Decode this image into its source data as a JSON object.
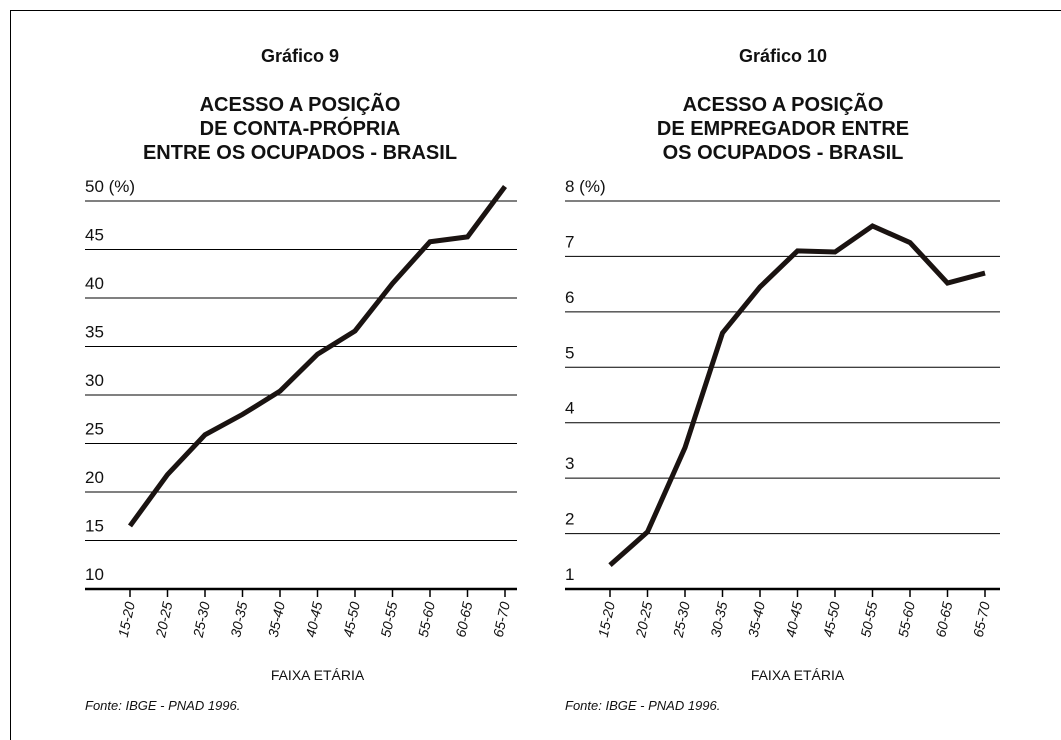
{
  "chart_data": [
    {
      "type": "line",
      "subtitle": "Gráfico 9",
      "title": [
        "ACESSO A POSIÇÃO",
        "DE CONTA-PRÓPRIA",
        "ENTRE OS OCUPADOS - BRASIL"
      ],
      "categories": [
        "15-20",
        "20-25",
        "25-30",
        "30-35",
        "35-40",
        "40-45",
        "45-50",
        "50-55",
        "55-60",
        "60-65",
        "65-70"
      ],
      "values": [
        16.5,
        21.8,
        25.9,
        28.0,
        30.4,
        34.2,
        36.6,
        41.5,
        45.8,
        46.3,
        51.5
      ],
      "color": "#1a1311",
      "ylim": [
        10,
        50
      ],
      "yticks": [
        10,
        15,
        20,
        25,
        30,
        35,
        40,
        45,
        {
          "value": 50,
          "label": "50 (%)"
        }
      ],
      "grid": true,
      "xlabel": "FAIXA ETÁRIA",
      "source": "Fonte: IBGE - PNAD 1996."
    },
    {
      "type": "line",
      "subtitle": "Gráfico 10",
      "title": [
        "ACESSO A POSIÇÃO",
        "DE EMPREGADOR ENTRE",
        "OS OCUPADOS - BRASIL"
      ],
      "categories": [
        "15-20",
        "20-25",
        "25-30",
        "30-35",
        "35-40",
        "40-45",
        "45-50",
        "50-55",
        "55-60",
        "60-65",
        "65-70"
      ],
      "values": [
        1.43,
        2.03,
        3.55,
        5.62,
        6.45,
        7.1,
        7.08,
        7.55,
        7.25,
        6.52,
        6.7
      ],
      "color": "#1a1311",
      "ylim": [
        1,
        8
      ],
      "yticks": [
        1,
        2,
        3,
        4,
        5,
        6,
        7,
        {
          "value": 8,
          "label": "8 (%)"
        }
      ],
      "grid": true,
      "xlabel": "FAIXA ETÁRIA",
      "source": "Fonte: IBGE - PNAD 1996."
    }
  ]
}
